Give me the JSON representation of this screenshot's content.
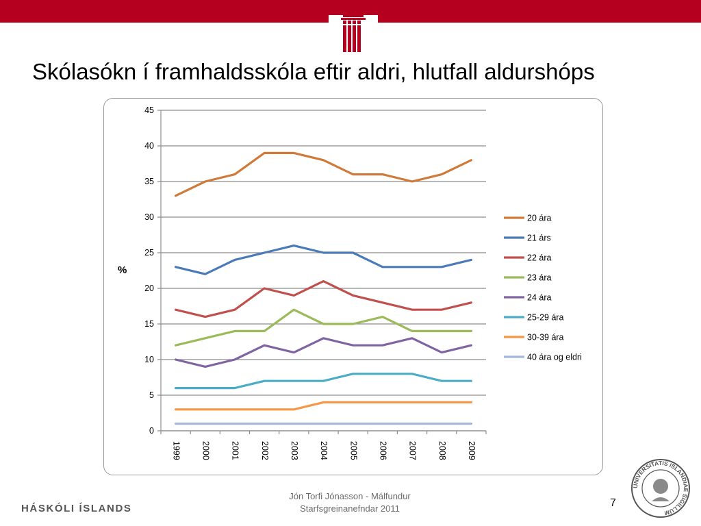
{
  "header": {
    "logo_icon": "university-pillars-icon"
  },
  "slide": {
    "title": "Skólasókn í framhaldsskóla eftir aldri, hlutfall aldurshóps"
  },
  "footer": {
    "brand": "HÁSKÓLI ÍSLANDS",
    "author_line1": "Jón Torfi Jónasson - Málfundur",
    "author_line2": "Starfsgreinanefndar 2011",
    "page_number": "7",
    "seal_icon": "universitatis-islandiae-seal-icon",
    "seal_text": "UNIVERSITATIS ISLANDIAE SIGILLUM"
  },
  "chart_data": {
    "type": "line",
    "ylabel": "%",
    "xlabel": "",
    "ylim": [
      0,
      45
    ],
    "yticks": [
      "0",
      "5",
      "10",
      "15",
      "20",
      "25",
      "30",
      "35",
      "40",
      "45"
    ],
    "categories": [
      "1999",
      "2000",
      "2001",
      "2002",
      "2003",
      "2004",
      "2005",
      "2006",
      "2007",
      "2008",
      "2009"
    ],
    "grid": true,
    "legend_position": "right",
    "series": [
      {
        "name": "20 ára",
        "color": "#d07a3a",
        "values": [
          33,
          35,
          36,
          39,
          39,
          38,
          36,
          36,
          35,
          36,
          38
        ]
      },
      {
        "name": "21 árs",
        "color": "#4a7ab8",
        "values": [
          23,
          22,
          24,
          25,
          26,
          25,
          25,
          23,
          23,
          23,
          24
        ]
      },
      {
        "name": "22 ára",
        "color": "#c0504d",
        "values": [
          17,
          16,
          17,
          20,
          19,
          21,
          19,
          18,
          17,
          17,
          18
        ]
      },
      {
        "name": "23 ára",
        "color": "#9bbb59",
        "values": [
          12,
          13,
          14,
          14,
          17,
          15,
          15,
          16,
          14,
          14,
          14
        ]
      },
      {
        "name": "24 ára",
        "color": "#8064a2",
        "values": [
          10,
          9,
          10,
          12,
          11,
          13,
          12,
          12,
          13,
          11,
          12
        ]
      },
      {
        "name": "25-29 ára",
        "color": "#4bacc6",
        "values": [
          6,
          6,
          6,
          7,
          7,
          7,
          8,
          8,
          8,
          7,
          7
        ]
      },
      {
        "name": "30-39 ára",
        "color": "#f79646",
        "values": [
          3,
          3,
          3,
          3,
          3,
          4,
          4,
          4,
          4,
          4,
          4
        ]
      },
      {
        "name": "40 ára og eldri",
        "color": "#a5b8dc",
        "values": [
          1,
          1,
          1,
          1,
          1,
          1,
          1,
          1,
          1,
          1,
          1
        ]
      }
    ]
  }
}
